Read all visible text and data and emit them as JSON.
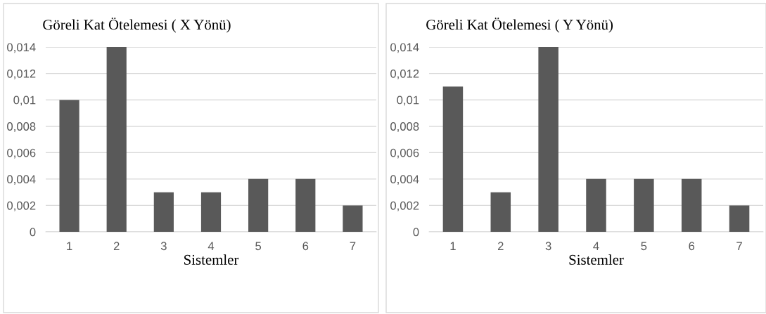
{
  "chart_data": [
    {
      "type": "bar",
      "title": "Göreli Kat Ötelemesi ( X Yönü)",
      "xlabel": "Sistemler",
      "categories": [
        "1",
        "2",
        "3",
        "4",
        "5",
        "6",
        "7"
      ],
      "values": [
        0.01,
        0.014,
        0.003,
        0.003,
        0.004,
        0.004,
        0.002
      ],
      "color": "#595959",
      "ylim": [
        0,
        0.014
      ],
      "yticks": [
        {
          "value": 0,
          "label": "0"
        },
        {
          "value": 0.002,
          "label": "0,002"
        },
        {
          "value": 0.004,
          "label": "0,004"
        },
        {
          "value": 0.006,
          "label": "0,006"
        },
        {
          "value": 0.008,
          "label": "0,008"
        },
        {
          "value": 0.01,
          "label": "0,01"
        },
        {
          "value": 0.012,
          "label": "0,012"
        },
        {
          "value": 0.014,
          "label": "0,014"
        }
      ],
      "grid": "y",
      "legend": false
    },
    {
      "type": "bar",
      "title": "Göreli Kat Ötelemesi ( Y Yönü)",
      "xlabel": "Sistemler",
      "categories": [
        "1",
        "2",
        "3",
        "4",
        "5",
        "6",
        "7"
      ],
      "values": [
        0.011,
        0.003,
        0.014,
        0.004,
        0.004,
        0.004,
        0.002
      ],
      "color": "#595959",
      "ylim": [
        0,
        0.014
      ],
      "yticks": [
        {
          "value": 0,
          "label": "0"
        },
        {
          "value": 0.002,
          "label": "0,002"
        },
        {
          "value": 0.004,
          "label": "0,004"
        },
        {
          "value": 0.006,
          "label": "0,006"
        },
        {
          "value": 0.008,
          "label": "0,008"
        },
        {
          "value": 0.01,
          "label": "0,01"
        },
        {
          "value": 0.012,
          "label": "0,012"
        },
        {
          "value": 0.014,
          "label": "0,014"
        }
      ],
      "grid": "y",
      "legend": false
    }
  ]
}
